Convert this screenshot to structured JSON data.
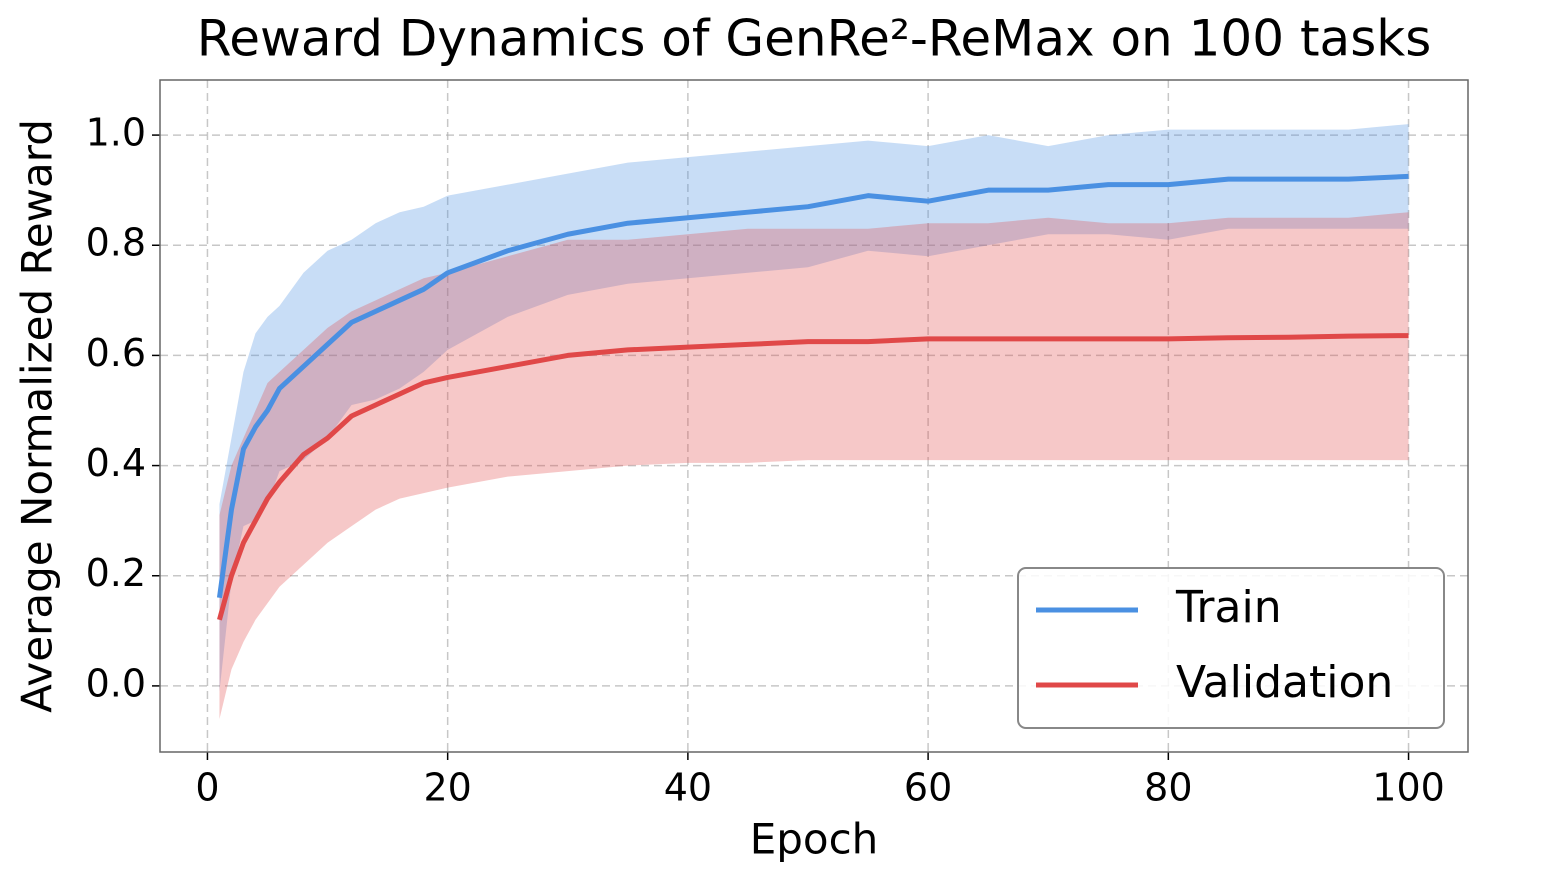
{
  "chart_data": {
    "type": "line",
    "title": "Reward Dynamics of GenRe²-ReMax on 100 tasks",
    "x_label": "Epoch",
    "y_label": "Average Normalized Reward",
    "x": [
      1,
      2,
      3,
      4,
      5,
      6,
      8,
      10,
      12,
      14,
      16,
      18,
      20,
      25,
      30,
      35,
      40,
      45,
      50,
      55,
      60,
      65,
      70,
      75,
      80,
      85,
      90,
      95,
      100
    ],
    "series": [
      {
        "name": "Train",
        "color": "#4a90e2",
        "values": [
          0.16,
          0.32,
          0.43,
          0.47,
          0.5,
          0.54,
          0.58,
          0.62,
          0.66,
          0.68,
          0.7,
          0.72,
          0.75,
          0.79,
          0.82,
          0.84,
          0.85,
          0.86,
          0.87,
          0.89,
          0.88,
          0.9,
          0.9,
          0.91,
          0.91,
          0.92,
          0.92,
          0.92,
          0.925
        ],
        "upper": [
          0.33,
          0.45,
          0.57,
          0.64,
          0.67,
          0.69,
          0.75,
          0.79,
          0.81,
          0.84,
          0.86,
          0.87,
          0.89,
          0.91,
          0.93,
          0.95,
          0.96,
          0.97,
          0.98,
          0.99,
          0.98,
          1.0,
          0.98,
          1.0,
          1.01,
          1.01,
          1.01,
          1.01,
          1.02
        ],
        "lower": [
          -0.01,
          0.19,
          0.29,
          0.3,
          0.33,
          0.39,
          0.41,
          0.45,
          0.51,
          0.52,
          0.54,
          0.57,
          0.61,
          0.67,
          0.71,
          0.73,
          0.74,
          0.75,
          0.76,
          0.79,
          0.78,
          0.8,
          0.82,
          0.82,
          0.81,
          0.83,
          0.83,
          0.83,
          0.83
        ]
      },
      {
        "name": "Validation",
        "color": "#e04848",
        "values": [
          0.12,
          0.2,
          0.26,
          0.3,
          0.34,
          0.37,
          0.42,
          0.45,
          0.49,
          0.51,
          0.53,
          0.55,
          0.56,
          0.58,
          0.6,
          0.61,
          0.615,
          0.62,
          0.625,
          0.625,
          0.63,
          0.63,
          0.63,
          0.63,
          0.63,
          0.632,
          0.633,
          0.635,
          0.636
        ],
        "upper": [
          0.31,
          0.4,
          0.45,
          0.5,
          0.55,
          0.57,
          0.61,
          0.65,
          0.68,
          0.7,
          0.72,
          0.74,
          0.75,
          0.78,
          0.81,
          0.81,
          0.82,
          0.83,
          0.83,
          0.83,
          0.84,
          0.84,
          0.85,
          0.84,
          0.84,
          0.85,
          0.85,
          0.85,
          0.86
        ],
        "lower": [
          -0.06,
          0.03,
          0.08,
          0.12,
          0.15,
          0.18,
          0.22,
          0.26,
          0.29,
          0.32,
          0.34,
          0.35,
          0.36,
          0.38,
          0.39,
          0.4,
          0.405,
          0.405,
          0.41,
          0.41,
          0.41,
          0.41,
          0.41,
          0.41,
          0.41,
          0.41,
          0.41,
          0.41,
          0.41
        ]
      }
    ],
    "xlim": [
      -3.95,
      104.95
    ],
    "ylim": [
      -0.12,
      1.1
    ],
    "xticks": [
      0,
      20,
      40,
      60,
      80,
      100
    ],
    "yticks": [
      {
        "value": 0,
        "label": "0.0"
      },
      {
        "value": 0.2,
        "label": "0.2"
      },
      {
        "value": 0.4,
        "label": "0.4"
      },
      {
        "value": 0.6,
        "label": "0.6"
      },
      {
        "value": 0.8,
        "label": "0.8"
      },
      {
        "value": 1,
        "label": "1.0"
      }
    ],
    "grid": true,
    "legend": "lower right"
  }
}
